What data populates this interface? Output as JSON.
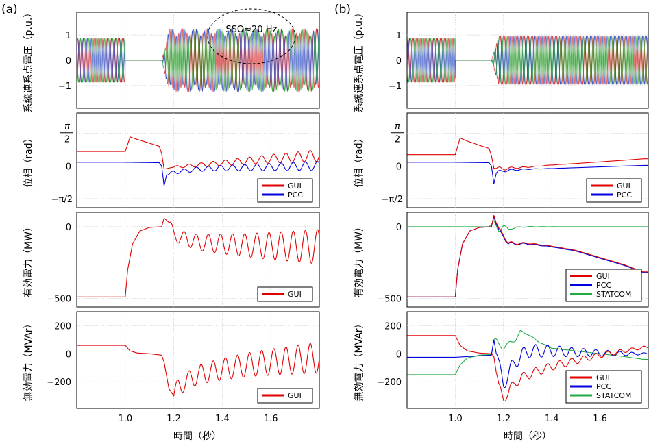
{
  "colors": {
    "phase_a": "#d62728",
    "phase_b": "#1f3fbf",
    "phase_c": "#2ca02c",
    "GUI": "#e00000",
    "PCC": "#0000dd",
    "STATCOM": "#22aa44"
  },
  "figure": {
    "panels": [
      {
        "label": "(a)"
      },
      {
        "label": "(b)",
        "annotation": ""
      }
    ],
    "xlabel": "時間（秒）",
    "xticks": [
      "1.0",
      "1.2",
      "1.4",
      "1.6"
    ]
  },
  "chart_data": [
    {
      "type": "line",
      "panel": "(a)",
      "row": "voltage",
      "ylabel": "系統連系点電圧（p.u.）",
      "xlim": [
        0.8,
        1.8
      ],
      "ylim": [
        -1.9,
        1.9
      ],
      "yticks": [
        {
          "v": 1,
          "t": "1"
        },
        {
          "v": 0,
          "t": "0"
        },
        {
          "v": -1,
          "t": "−1"
        }
      ],
      "annotation": "SSO≈20 Hz",
      "series": [
        {
          "phase": "a",
          "freq_hz": 60,
          "segments": [
            [
              0.8,
              1.0,
              0.87
            ],
            [
              1.0,
              1.15,
              0.0
            ],
            [
              1.15,
              1.8,
              1.25
            ]
          ],
          "sso_hz": 20
        },
        {
          "phase": "b",
          "freq_hz": 60,
          "segments": [
            [
              0.8,
              1.0,
              0.87
            ],
            [
              1.0,
              1.15,
              0.0
            ],
            [
              1.15,
              1.8,
              1.25
            ]
          ],
          "sso_hz": 20
        },
        {
          "phase": "c",
          "freq_hz": 60,
          "segments": [
            [
              0.8,
              1.0,
              0.87
            ],
            [
              1.0,
              1.15,
              0.0
            ],
            [
              1.15,
              1.8,
              1.25
            ]
          ],
          "sso_hz": 20
        }
      ]
    },
    {
      "type": "line",
      "panel": "(a)",
      "row": "phase",
      "ylabel": "位相（rad）",
      "xlim": [
        0.8,
        1.8
      ],
      "ylim": [
        -2.0,
        2.55
      ],
      "yticks": [
        {
          "v": 1.5708,
          "t": "π/2"
        },
        {
          "v": 0,
          "t": "0"
        },
        {
          "v": -1.5708,
          "t": "−π/2"
        }
      ],
      "legend": [
        "GUI",
        "PCC"
      ],
      "series": [
        {
          "name": "GUI",
          "x": [
            0.8,
            1.0,
            1.02,
            1.05,
            1.1,
            1.14,
            1.15,
            1.16,
            1.18,
            1.2,
            1.3,
            1.4,
            1.5,
            1.6,
            1.7,
            1.78
          ],
          "y": [
            0.7,
            0.7,
            1.4,
            1.28,
            1.1,
            0.95,
            0.6,
            -0.15,
            -0.1,
            -0.05,
            0.05,
            0.15,
            0.25,
            0.35,
            0.42,
            0.5
          ],
          "osc": {
            "from": 1.2,
            "amp0": 0.05,
            "amp1": 0.28,
            "hz": 20
          }
        },
        {
          "name": "PCC",
          "x": [
            0.8,
            1.0,
            1.14,
            1.15,
            1.16,
            1.17,
            1.2,
            1.3,
            1.4,
            1.5,
            1.6,
            1.7,
            1.78
          ],
          "y": [
            0.18,
            0.18,
            0.16,
            0.0,
            -0.95,
            -0.45,
            -0.3,
            -0.15,
            -0.1,
            -0.08,
            -0.05,
            -0.02,
            0.0
          ],
          "osc": {
            "from": 1.18,
            "amp0": 0.08,
            "amp1": 0.22,
            "hz": 20
          }
        }
      ]
    },
    {
      "type": "line",
      "panel": "(a)",
      "row": "active",
      "ylabel": "有効電力（MW）",
      "xlim": [
        0.8,
        1.8
      ],
      "ylim": [
        -560,
        100
      ],
      "yticks": [
        {
          "v": 0,
          "t": "0"
        },
        {
          "v": -500,
          "t": "−500"
        }
      ],
      "legend": [
        "GUI"
      ],
      "series": [
        {
          "name": "GUI",
          "x": [
            0.8,
            1.0,
            1.01,
            1.03,
            1.06,
            1.1,
            1.15,
            1.16,
            1.18,
            1.2,
            1.3,
            1.5,
            1.78
          ],
          "y": [
            -490,
            -490,
            -300,
            -120,
            -30,
            -5,
            0,
            60,
            30,
            -60,
            -110,
            -130,
            -140
          ],
          "osc": {
            "from": 1.18,
            "amp0": 40,
            "amp1": 120,
            "hz": 20
          }
        }
      ]
    },
    {
      "type": "line",
      "panel": "(a)",
      "row": "reactive",
      "ylabel": "無効電力（MVAr）",
      "xlim": [
        0.8,
        1.8
      ],
      "ylim": [
        -390,
        300
      ],
      "yticks": [
        {
          "v": 200,
          "t": "200"
        },
        {
          "v": 0,
          "t": "0"
        },
        {
          "v": -200,
          "t": "−200"
        }
      ],
      "legend": [
        "GUI"
      ],
      "series": [
        {
          "name": "GUI",
          "x": [
            0.8,
            1.0,
            1.02,
            1.05,
            1.1,
            1.15,
            1.16,
            1.18,
            1.2,
            1.22,
            1.3,
            1.4,
            1.5,
            1.6,
            1.78
          ],
          "y": [
            60,
            60,
            20,
            5,
            0,
            -10,
            -60,
            -250,
            -300,
            -230,
            -150,
            -110,
            -80,
            -60,
            -30
          ],
          "osc": {
            "from": 1.2,
            "amp0": 60,
            "amp1": 110,
            "hz": 20
          }
        }
      ]
    },
    {
      "type": "line",
      "panel": "(b)",
      "row": "voltage",
      "ylabel": "系統連系点電圧（p.u.）",
      "xlim": [
        0.8,
        1.8
      ],
      "ylim": [
        -1.9,
        1.9
      ],
      "yticks": [
        {
          "v": 1,
          "t": "1"
        },
        {
          "v": 0,
          "t": "0"
        },
        {
          "v": -1,
          "t": "−1"
        }
      ],
      "series": [
        {
          "phase": "a",
          "freq_hz": 60,
          "segments": [
            [
              0.8,
              1.0,
              0.87
            ],
            [
              1.0,
              1.15,
              0.0
            ],
            [
              1.15,
              1.8,
              0.95
            ]
          ],
          "sso_hz": 0
        },
        {
          "phase": "b",
          "freq_hz": 60,
          "segments": [
            [
              0.8,
              1.0,
              0.87
            ],
            [
              1.0,
              1.15,
              0.0
            ],
            [
              1.15,
              1.8,
              0.95
            ]
          ],
          "sso_hz": 0
        },
        {
          "phase": "c",
          "freq_hz": 60,
          "segments": [
            [
              0.8,
              1.0,
              0.87
            ],
            [
              1.0,
              1.15,
              0.0
            ],
            [
              1.15,
              1.8,
              0.95
            ]
          ],
          "sso_hz": 0
        }
      ]
    },
    {
      "type": "line",
      "panel": "(b)",
      "row": "phase",
      "ylabel": "位相（rad）",
      "xlim": [
        0.8,
        1.8
      ],
      "ylim": [
        -2.0,
        2.55
      ],
      "yticks": [
        {
          "v": 1.5708,
          "t": "π/2"
        },
        {
          "v": 0,
          "t": "0"
        },
        {
          "v": -1.5708,
          "t": "−π/2"
        }
      ],
      "legend": [
        "GUI",
        "PCC"
      ],
      "series": [
        {
          "name": "GUI",
          "x": [
            0.8,
            1.0,
            1.02,
            1.05,
            1.1,
            1.14,
            1.15,
            1.16,
            1.18,
            1.2,
            1.3,
            1.4,
            1.5,
            1.6,
            1.7,
            1.78
          ],
          "y": [
            0.55,
            0.55,
            1.35,
            1.2,
            1.0,
            0.85,
            0.5,
            -0.1,
            -0.15,
            -0.12,
            -0.05,
            0.05,
            0.12,
            0.2,
            0.28,
            0.35
          ],
          "osc": {
            "from": 1.17,
            "amp0": 0.12,
            "amp1": 0.0,
            "hz": 20
          }
        },
        {
          "name": "PCC",
          "x": [
            0.8,
            1.0,
            1.14,
            1.15,
            1.16,
            1.17,
            1.2,
            1.3,
            1.4,
            1.5,
            1.6,
            1.7,
            1.78
          ],
          "y": [
            0.18,
            0.18,
            0.16,
            0.0,
            -0.85,
            -0.35,
            -0.22,
            -0.15,
            -0.12,
            -0.08,
            -0.04,
            0.0,
            0.03
          ],
          "osc": {
            "from": 1.17,
            "amp0": 0.1,
            "amp1": 0.0,
            "hz": 20
          }
        }
      ]
    },
    {
      "type": "line",
      "panel": "(b)",
      "row": "active",
      "ylabel": "有効電力（MW）",
      "xlim": [
        0.8,
        1.8
      ],
      "ylim": [
        -560,
        100
      ],
      "yticks": [
        {
          "v": 0,
          "t": "0"
        },
        {
          "v": -500,
          "t": "−500"
        }
      ],
      "legend": [
        "GUI",
        "PCC",
        "STATCOM"
      ],
      "series": [
        {
          "name": "STATCOM",
          "x": [
            0.8,
            1.14,
            1.16,
            1.18,
            1.2,
            1.22,
            1.25,
            1.3,
            1.78
          ],
          "y": [
            0,
            0,
            30,
            -30,
            10,
            -20,
            -5,
            0,
            0
          ],
          "osc": {
            "from": 1.15,
            "amp0": 15,
            "amp1": 0,
            "hz": 20
          }
        },
        {
          "name": "PCC",
          "x": [
            0.8,
            1.0,
            1.01,
            1.03,
            1.06,
            1.1,
            1.15,
            1.16,
            1.18,
            1.2,
            1.22,
            1.3,
            1.4,
            1.5,
            1.6,
            1.7,
            1.78
          ],
          "y": [
            -490,
            -490,
            -300,
            -120,
            -30,
            -5,
            0,
            70,
            -40,
            -60,
            -120,
            -120,
            -140,
            -170,
            -220,
            -270,
            -320
          ],
          "osc": {
            "from": 1.17,
            "amp0": 25,
            "amp1": 0,
            "hz": 20
          }
        },
        {
          "name": "GUI",
          "x": [
            0.8,
            1.0,
            1.01,
            1.03,
            1.06,
            1.1,
            1.15,
            1.16,
            1.18,
            1.2,
            1.22,
            1.3,
            1.4,
            1.5,
            1.6,
            1.7,
            1.78
          ],
          "y": [
            -490,
            -490,
            -300,
            -120,
            -30,
            -5,
            0,
            80,
            -30,
            -50,
            -115,
            -115,
            -135,
            -165,
            -215,
            -265,
            -315
          ],
          "osc": {
            "from": 1.17,
            "amp0": 25,
            "amp1": 0,
            "hz": 20
          }
        }
      ]
    },
    {
      "type": "line",
      "panel": "(b)",
      "row": "reactive",
      "ylabel": "無効電力（MVAr）",
      "xlim": [
        0.8,
        1.8
      ],
      "ylim": [
        -390,
        300
      ],
      "yticks": [
        {
          "v": 200,
          "t": "200"
        },
        {
          "v": 0,
          "t": "0"
        },
        {
          "v": -200,
          "t": "−200"
        }
      ],
      "legend": [
        "GUI",
        "PCC",
        "STATCOM"
      ],
      "series": [
        {
          "name": "STATCOM",
          "x": [
            0.8,
            1.0,
            1.02,
            1.05,
            1.1,
            1.15,
            1.16,
            1.18,
            1.2,
            1.25,
            1.27,
            1.3,
            1.35,
            1.4,
            1.5,
            1.6,
            1.7,
            1.78
          ],
          "y": [
            -150,
            -150,
            -80,
            -30,
            -10,
            -5,
            100,
            60,
            50,
            100,
            160,
            140,
            80,
            40,
            20,
            0,
            -20,
            -40
          ],
          "osc": {
            "from": 1.16,
            "amp0": 30,
            "amp1": 0,
            "hz": 20
          }
        },
        {
          "name": "PCC",
          "x": [
            0.8,
            1.0,
            1.05,
            1.1,
            1.15,
            1.16,
            1.18,
            1.2,
            1.22,
            1.25,
            1.3,
            1.4,
            1.5,
            1.6,
            1.7,
            1.78
          ],
          "y": [
            -25,
            -25,
            -20,
            -15,
            -10,
            100,
            -100,
            -200,
            -150,
            -50,
            20,
            20,
            10,
            5,
            0,
            0
          ],
          "osc": {
            "from": 1.17,
            "amp0": 60,
            "amp1": 5,
            "hz": 20
          }
        },
        {
          "name": "GUI",
          "x": [
            0.8,
            1.0,
            1.02,
            1.05,
            1.1,
            1.15,
            1.16,
            1.18,
            1.2,
            1.22,
            1.25,
            1.3,
            1.4,
            1.5,
            1.6,
            1.7,
            1.78
          ],
          "y": [
            130,
            130,
            60,
            20,
            5,
            0,
            -20,
            -250,
            -310,
            -280,
            -200,
            -150,
            -90,
            -50,
            -10,
            20,
            45
          ],
          "osc": {
            "from": 1.17,
            "amp0": 40,
            "amp1": 8,
            "hz": 20
          }
        }
      ]
    }
  ]
}
